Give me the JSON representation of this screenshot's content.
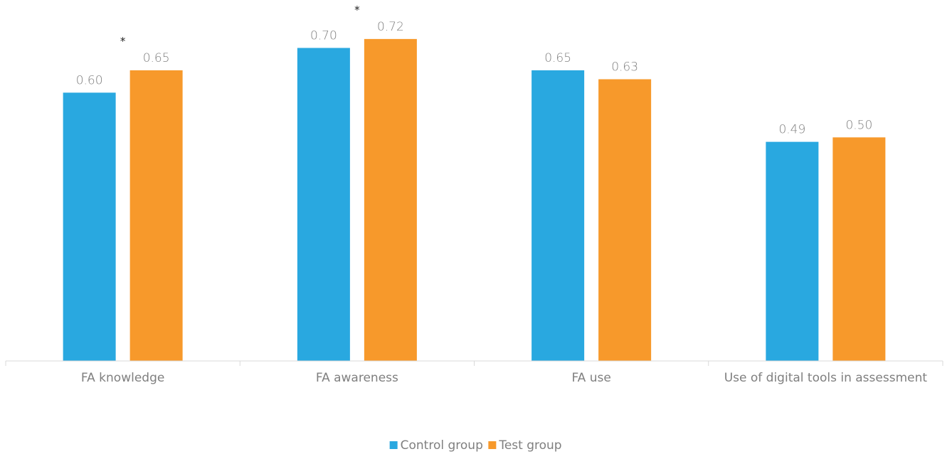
{
  "chart_data": {
    "type": "bar",
    "categories": [
      "FA knowledge",
      "FA awareness",
      "FA use",
      "Use of digital tools in assessment"
    ],
    "series": [
      {
        "name": "Control group",
        "values": [
          0.6,
          0.7,
          0.65,
          0.49
        ],
        "labels": [
          "0.60",
          "0.70",
          "0.65",
          "0.49"
        ],
        "color": "#29a8e0"
      },
      {
        "name": "Test group",
        "values": [
          0.65,
          0.72,
          0.63,
          0.5
        ],
        "labels": [
          "0.65",
          "0.72",
          "0.63",
          "0.50"
        ],
        "color": "#f7992b"
      }
    ],
    "annotations": [
      {
        "category_index": 0,
        "text": "*"
      },
      {
        "category_index": 1,
        "text": "*"
      }
    ],
    "ylim": [
      0,
      0.75
    ],
    "grid": false,
    "legend_position": "bottom-center",
    "axis_color": "#d9d9d9"
  }
}
